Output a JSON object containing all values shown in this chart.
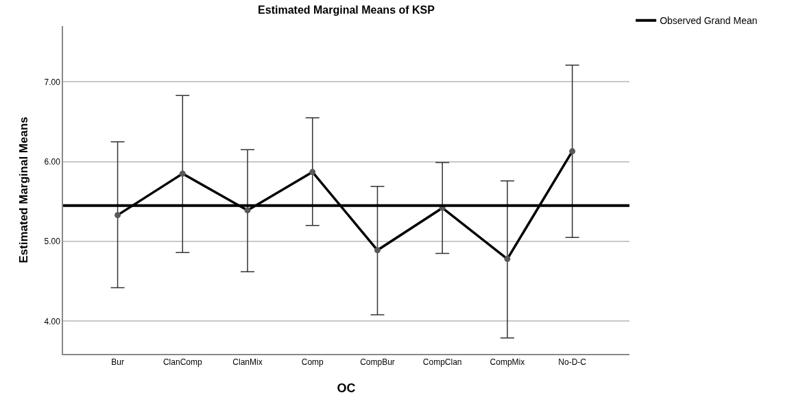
{
  "chart_data": {
    "type": "line",
    "title": "Estimated Marginal Means of KSP",
    "xlabel": "OC",
    "ylabel": "Estimated Marginal Means",
    "categories": [
      "Bur",
      "ClanComp",
      "ClanMix",
      "Comp",
      "CompBur",
      "CompClan",
      "CompMix",
      "No-D-C"
    ],
    "series": [
      {
        "color": "#000000",
        "values": [
          5.33,
          5.85,
          5.39,
          5.87,
          4.89,
          5.42,
          4.78,
          6.13
        ],
        "errors": [
          [
            4.42,
            6.25
          ],
          [
            4.86,
            6.83
          ],
          [
            4.62,
            6.15
          ],
          [
            5.2,
            6.55
          ],
          [
            4.08,
            5.69
          ],
          [
            4.85,
            5.99
          ],
          [
            3.79,
            5.76
          ],
          [
            5.05,
            7.21
          ]
        ]
      }
    ],
    "ylim": [
      3.59,
      7.7
    ],
    "yticks": [
      {
        "value": 4,
        "label": "4.00"
      },
      {
        "value": 5,
        "label": "5.00"
      },
      {
        "value": 6,
        "label": "6.00"
      },
      {
        "value": 7,
        "label": "7.00"
      }
    ],
    "ref_lines": [
      {
        "axis": "y",
        "value": 5.45,
        "label": "Observed Grand Mean",
        "color": "#000000",
        "line_style": "solid"
      }
    ],
    "grid": "y",
    "legend": "top right",
    "marker": "circle",
    "line_style": "solid"
  }
}
